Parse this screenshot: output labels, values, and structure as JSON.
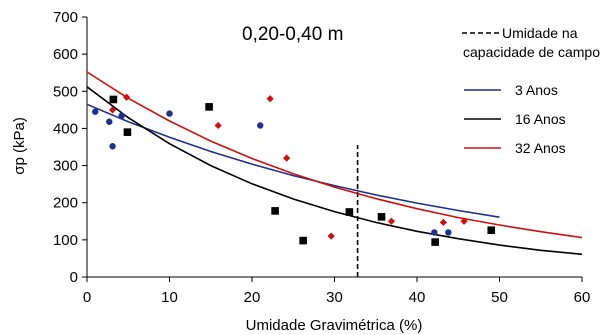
{
  "chart_data": {
    "type": "scatter",
    "title": "0,20-0,40 m",
    "xlabel": "Umidade Gravimétrica (%)",
    "ylabel": "σp (kPa)",
    "xlim": [
      0,
      60
    ],
    "ylim": [
      0,
      700
    ],
    "xticks": [
      0,
      10,
      20,
      30,
      40,
      50,
      60
    ],
    "yticks": [
      0,
      100,
      200,
      300,
      400,
      500,
      600,
      700
    ],
    "grid": false,
    "legend_position": "right",
    "reference_line": {
      "x": 32.8,
      "y_range": [
        0,
        355
      ],
      "label_line1": "Umidade na",
      "label_line2": "capacidade de campo",
      "color": "#000000"
    },
    "series": [
      {
        "name": "3 Anos",
        "color": "#1f2f8a",
        "marker": "circle",
        "points": [
          [
            1,
            445
          ],
          [
            2.7,
            418
          ],
          [
            3.1,
            352
          ],
          [
            4.2,
            434
          ],
          [
            10,
            440
          ],
          [
            21,
            408
          ],
          [
            42.1,
            120
          ],
          [
            43.8,
            120
          ]
        ],
        "curve": {
          "x": [
            0,
            5,
            10,
            15,
            20,
            25,
            30,
            35,
            40,
            45,
            50
          ],
          "y": [
            465,
            418,
            376,
            338,
            304,
            273,
            246,
            221,
            199,
            179,
            161
          ]
        }
      },
      {
        "name": "16 Anos",
        "color": "#000000",
        "marker": "square",
        "points": [
          [
            3.2,
            478
          ],
          [
            4.9,
            390
          ],
          [
            14.8,
            458
          ],
          [
            22.8,
            178
          ],
          [
            26.2,
            98
          ],
          [
            31.8,
            175
          ],
          [
            35.7,
            162
          ],
          [
            42.2,
            94
          ],
          [
            49,
            126
          ]
        ],
        "curve": {
          "x": [
            0,
            5,
            10,
            15,
            20,
            25,
            30,
            35,
            40,
            45,
            50,
            55,
            60
          ],
          "y": [
            512,
            429,
            359,
            300,
            251,
            210,
            176,
            147,
            123,
            103,
            86,
            72,
            61
          ]
        }
      },
      {
        "name": "32 Anos",
        "color": "#cc1111",
        "marker": "diamond",
        "points": [
          [
            3.1,
            450
          ],
          [
            4.8,
            484
          ],
          [
            15.9,
            408
          ],
          [
            22.2,
            480
          ],
          [
            24.2,
            320
          ],
          [
            29.6,
            110
          ],
          [
            36.9,
            150
          ],
          [
            43.2,
            147
          ],
          [
            45.7,
            150
          ]
        ],
        "curve": {
          "x": [
            0,
            5,
            10,
            15,
            20,
            25,
            30,
            35,
            40,
            45,
            50,
            55,
            60
          ],
          "y": [
            552,
            481,
            420,
            366,
            319,
            278,
            242,
            211,
            184,
            160,
            140,
            122,
            106
          ]
        }
      }
    ]
  }
}
